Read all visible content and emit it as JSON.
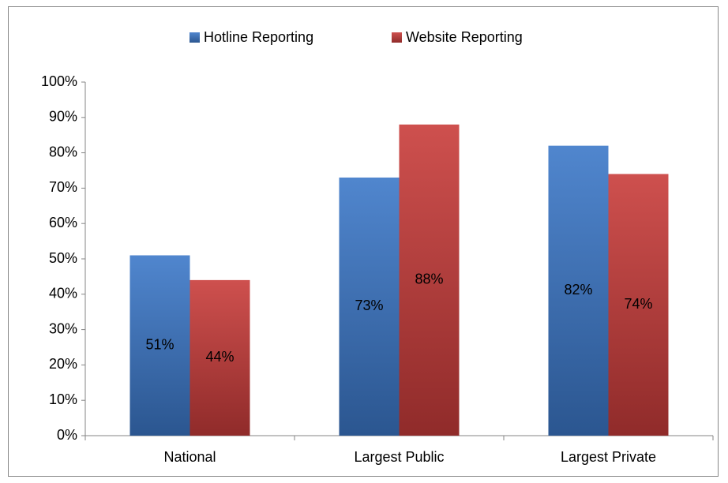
{
  "chart_data": {
    "type": "bar",
    "categories": [
      "National",
      "Largest Public",
      "Largest Private"
    ],
    "series": [
      {
        "name": "Hotline Reporting",
        "color": "#3c78c8",
        "values": [
          51,
          73,
          82
        ],
        "value_labels": [
          "51%",
          "73%",
          "82%"
        ]
      },
      {
        "name": "Website Reporting",
        "color": "#c83c3a",
        "values": [
          44,
          88,
          74
        ],
        "value_labels": [
          "44%",
          "88%",
          "74%"
        ]
      }
    ],
    "ylim": [
      0,
      100
    ],
    "yticks": [
      {
        "value": 0,
        "label": "0%"
      },
      {
        "value": 10,
        "label": "10%"
      },
      {
        "value": 20,
        "label": "20%"
      },
      {
        "value": 30,
        "label": "30%"
      },
      {
        "value": 40,
        "label": "40%"
      },
      {
        "value": 50,
        "label": "50%"
      },
      {
        "value": 60,
        "label": "60%"
      },
      {
        "value": 70,
        "label": "70%"
      },
      {
        "value": 80,
        "label": "80%"
      },
      {
        "value": 90,
        "label": "90%"
      },
      {
        "value": 100,
        "label": "100%"
      }
    ],
    "grid": false,
    "legend": "top"
  }
}
